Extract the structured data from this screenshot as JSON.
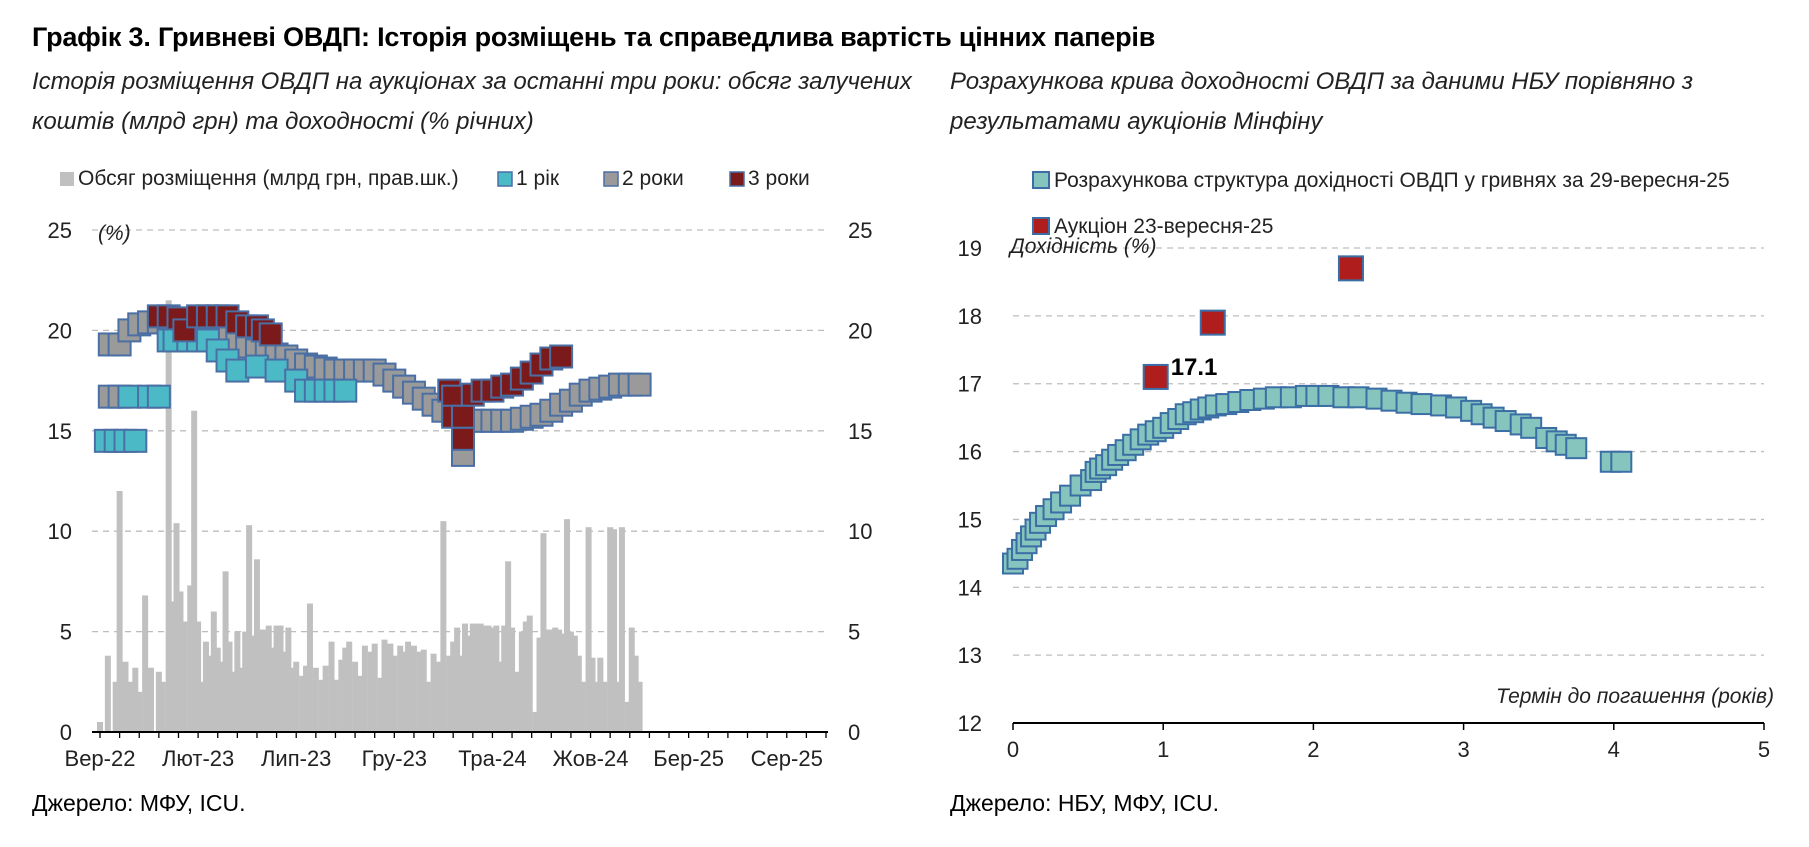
{
  "title": "Графік 3. Гривневі ОВДП: Історія розміщень та справедлива вартість цінних паперів",
  "charts": [
    {
      "subtitle_lines": [
        "Історія розміщення ОВДП на аукціонах за останні три роки: обсяг залучених",
        "коштів (млрд грн) та доходності (% річних)"
      ],
      "source": "Джерело: МФУ, ICU."
    },
    {
      "subtitle_lines": [
        "Розрахункова крива доходності ОВДП за даними НБУ порівняно з",
        "результатами аукціонів Мінфіну"
      ],
      "source": "Джерело: НБУ, МФУ, ICU."
    }
  ],
  "chart_data": [
    {
      "type": "bar+scatter",
      "legend": [
        "Обсяг розміщення (млрд грн, прав.шк.)",
        "1 рік",
        "2 роки",
        "3 роки"
      ],
      "legend_placement": "top",
      "ylabel": "(%)",
      "ylim": [
        0,
        25
      ],
      "yticks": [
        0,
        5,
        10,
        15,
        20,
        25
      ],
      "y2lim": [
        0,
        25
      ],
      "y2ticks": [
        0,
        5,
        10,
        15,
        20,
        25
      ],
      "xticks": [
        "Вер-22",
        "Лют-23",
        "Лип-23",
        "Гру-23",
        "Тра-24",
        "Жов-24",
        "Бер-25",
        "Сер-25"
      ],
      "x_month_range": [
        "2022-09",
        "2025-10"
      ],
      "grid": true,
      "colors": {
        "volume": "#c0c0c0",
        "yr1": "#4bbac6",
        "yr2": "#9a9a9a",
        "yr3": "#7b1a1a",
        "edge": "#4a6fa5"
      },
      "volume": [
        [
          0,
          0.5
        ],
        [
          0.4,
          3.8
        ],
        [
          0.8,
          2.5
        ],
        [
          1.0,
          12.0
        ],
        [
          1.3,
          3.5
        ],
        [
          1.6,
          2.5
        ],
        [
          1.8,
          3.2
        ],
        [
          2.0,
          2.0
        ],
        [
          2.3,
          6.8
        ],
        [
          2.6,
          3.2
        ],
        [
          3.0,
          3.0
        ],
        [
          3.2,
          2.5
        ],
        [
          3.5,
          21.5
        ],
        [
          3.7,
          6.5
        ],
        [
          3.9,
          10.4
        ],
        [
          4.1,
          7.0
        ],
        [
          4.3,
          5.5
        ],
        [
          4.6,
          7.3
        ],
        [
          4.8,
          16.0
        ],
        [
          5.0,
          5.5
        ],
        [
          5.2,
          2.5
        ],
        [
          5.4,
          4.5
        ],
        [
          5.6,
          3.8
        ],
        [
          5.8,
          6.0
        ],
        [
          6.0,
          4.2
        ],
        [
          6.2,
          3.5
        ],
        [
          6.4,
          8.0
        ],
        [
          6.6,
          4.5
        ],
        [
          6.8,
          3.0
        ],
        [
          7.0,
          5.0
        ],
        [
          7.2,
          3.2
        ],
        [
          7.4,
          5.0
        ],
        [
          7.6,
          10.3
        ],
        [
          7.8,
          4.8
        ],
        [
          8.0,
          8.6
        ],
        [
          8.2,
          5.1
        ],
        [
          8.4,
          5.1
        ],
        [
          8.6,
          5.3
        ],
        [
          8.8,
          4.2
        ],
        [
          9.0,
          5.3
        ],
        [
          9.2,
          5.3
        ],
        [
          9.4,
          4.0
        ],
        [
          9.6,
          5.2
        ],
        [
          9.8,
          3.2
        ],
        [
          10.0,
          3.5
        ],
        [
          10.3,
          2.8
        ],
        [
          10.5,
          3.3
        ],
        [
          10.7,
          6.4
        ],
        [
          11.0,
          3.2
        ],
        [
          11.3,
          2.6
        ],
        [
          11.5,
          3.3
        ],
        [
          11.8,
          4.5
        ],
        [
          12.0,
          2.6
        ],
        [
          12.3,
          3.6
        ],
        [
          12.5,
          4.2
        ],
        [
          12.7,
          4.5
        ],
        [
          13.0,
          3.5
        ],
        [
          13.2,
          2.8
        ],
        [
          13.5,
          4.3
        ],
        [
          13.8,
          4.0
        ],
        [
          14.0,
          4.4
        ],
        [
          14.3,
          2.7
        ],
        [
          14.5,
          4.6
        ],
        [
          14.8,
          4.4
        ],
        [
          15.0,
          3.8
        ],
        [
          15.3,
          4.3
        ],
        [
          15.5,
          4.0
        ],
        [
          15.7,
          4.5
        ],
        [
          16.0,
          4.3
        ],
        [
          16.3,
          4.0
        ],
        [
          16.5,
          4.1
        ],
        [
          16.7,
          2.5
        ],
        [
          17.0,
          3.9
        ],
        [
          17.3,
          3.5
        ],
        [
          17.5,
          10.5
        ],
        [
          17.8,
          3.8
        ],
        [
          18.0,
          4.5
        ],
        [
          18.2,
          5.2
        ],
        [
          18.4,
          3.8
        ],
        [
          18.6,
          5.4
        ],
        [
          18.8,
          4.8
        ],
        [
          19.0,
          5.4
        ],
        [
          19.2,
          5.4
        ],
        [
          19.4,
          5.4
        ],
        [
          19.6,
          5.3
        ],
        [
          19.8,
          5.3
        ],
        [
          20.0,
          5.2
        ],
        [
          20.2,
          5.3
        ],
        [
          20.4,
          3.5
        ],
        [
          20.6,
          5.3
        ],
        [
          20.8,
          8.5
        ],
        [
          21.0,
          5.2
        ],
        [
          21.2,
          3.0
        ],
        [
          21.5,
          5.0
        ],
        [
          21.7,
          5.5
        ],
        [
          21.9,
          5.8
        ],
        [
          22.2,
          1.0
        ],
        [
          22.4,
          4.7
        ],
        [
          22.6,
          9.9
        ],
        [
          22.8,
          5.1
        ],
        [
          23.0,
          5.1
        ],
        [
          23.2,
          5.2
        ],
        [
          23.4,
          5.1
        ],
        [
          23.6,
          4.9
        ],
        [
          23.8,
          10.6
        ],
        [
          24.0,
          5.0
        ],
        [
          24.2,
          4.8
        ],
        [
          24.4,
          3.8
        ],
        [
          24.6,
          2.5
        ],
        [
          24.9,
          10.2
        ],
        [
          25.1,
          3.7
        ],
        [
          25.3,
          2.5
        ],
        [
          25.5,
          3.7
        ],
        [
          25.7,
          2.5
        ],
        [
          26.0,
          10.2
        ],
        [
          26.2,
          10.1
        ],
        [
          26.4,
          2.5
        ],
        [
          26.6,
          10.2
        ],
        [
          26.9,
          1.5
        ],
        [
          27.1,
          5.2
        ],
        [
          27.3,
          3.8
        ],
        [
          27.5,
          2.5
        ]
      ],
      "yr1": [
        [
          0.3,
          14.5
        ],
        [
          0.8,
          14.5
        ],
        [
          1.3,
          14.5
        ],
        [
          1.8,
          14.5
        ],
        [
          1.5,
          16.7
        ],
        [
          2.5,
          16.7
        ],
        [
          3.0,
          16.7
        ],
        [
          3.5,
          19.5
        ],
        [
          3.8,
          19.5
        ],
        [
          4.5,
          19.5
        ],
        [
          5.0,
          19.5
        ],
        [
          5.5,
          19.5
        ],
        [
          6.0,
          19.0
        ],
        [
          6.5,
          18.5
        ],
        [
          7.0,
          18.0
        ],
        [
          8.0,
          18.2
        ],
        [
          9.0,
          18.0
        ],
        [
          10.0,
          17.5
        ],
        [
          10.5,
          17.0
        ],
        [
          11.0,
          17.0
        ],
        [
          11.5,
          17.0
        ],
        [
          12.0,
          17.0
        ],
        [
          12.5,
          17.0
        ]
      ],
      "yr2": [
        [
          0.5,
          16.7
        ],
        [
          1.0,
          16.7
        ],
        [
          0.5,
          19.3
        ],
        [
          1.0,
          19.3
        ],
        [
          1.5,
          20.0
        ],
        [
          2.0,
          20.3
        ],
        [
          2.5,
          20.4
        ],
        [
          3.0,
          20.4
        ],
        [
          3.5,
          20.4
        ],
        [
          4.0,
          20.3
        ],
        [
          4.5,
          20.2
        ],
        [
          5.0,
          20.2
        ],
        [
          5.5,
          20.0
        ],
        [
          6.0,
          19.8
        ],
        [
          6.5,
          19.6
        ],
        [
          7.0,
          19.4
        ],
        [
          7.5,
          19.2
        ],
        [
          8.0,
          19.0
        ],
        [
          8.5,
          18.9
        ],
        [
          9.0,
          18.8
        ],
        [
          9.5,
          18.7
        ],
        [
          10.0,
          18.5
        ],
        [
          10.5,
          18.3
        ],
        [
          11.0,
          18.2
        ],
        [
          11.5,
          18.1
        ],
        [
          12.0,
          18.0
        ],
        [
          12.5,
          18.0
        ],
        [
          13.0,
          18.0
        ],
        [
          13.5,
          18.0
        ],
        [
          14.0,
          18.0
        ],
        [
          14.5,
          17.8
        ],
        [
          15.0,
          17.5
        ],
        [
          15.5,
          17.2
        ],
        [
          16.0,
          16.9
        ],
        [
          16.5,
          16.6
        ],
        [
          17.0,
          16.3
        ],
        [
          17.5,
          16.0
        ],
        [
          18.0,
          15.8
        ],
        [
          18.5,
          15.6
        ],
        [
          19.0,
          15.5
        ],
        [
          19.5,
          15.5
        ],
        [
          20.0,
          15.5
        ],
        [
          20.5,
          15.5
        ],
        [
          21.0,
          15.5
        ],
        [
          21.5,
          15.6
        ],
        [
          22.0,
          15.7
        ],
        [
          22.5,
          15.8
        ],
        [
          23.0,
          16.0
        ],
        [
          23.5,
          16.3
        ],
        [
          24.0,
          16.5
        ],
        [
          24.5,
          16.8
        ],
        [
          25.0,
          17.0
        ],
        [
          25.5,
          17.1
        ],
        [
          26.0,
          17.2
        ],
        [
          26.5,
          17.3
        ],
        [
          27.0,
          17.3
        ],
        [
          27.5,
          17.3
        ],
        [
          18.5,
          13.8
        ],
        [
          18.5,
          14.8
        ]
      ],
      "yr3": [
        [
          3.0,
          20.7
        ],
        [
          3.5,
          20.7
        ],
        [
          4.0,
          20.6
        ],
        [
          4.3,
          20.0
        ],
        [
          5.0,
          20.7
        ],
        [
          5.5,
          20.7
        ],
        [
          6.0,
          20.7
        ],
        [
          6.5,
          20.7
        ],
        [
          7.0,
          20.4
        ],
        [
          7.5,
          20.2
        ],
        [
          8.0,
          20.2
        ],
        [
          8.3,
          20.0
        ],
        [
          8.7,
          19.8
        ],
        [
          17.8,
          17.0
        ],
        [
          18.0,
          16.7
        ],
        [
          18.0,
          15.7
        ],
        [
          18.5,
          15.7
        ],
        [
          18.5,
          14.6
        ],
        [
          19.0,
          16.8
        ],
        [
          19.5,
          17.0
        ],
        [
          20.0,
          17.0
        ],
        [
          20.5,
          17.2
        ],
        [
          21.0,
          17.3
        ],
        [
          21.5,
          17.6
        ],
        [
          22.0,
          17.9
        ],
        [
          22.5,
          18.3
        ],
        [
          23.0,
          18.6
        ],
        [
          23.5,
          18.7
        ]
      ]
    },
    {
      "type": "scatter",
      "legend": [
        "Розрахункова структура дохідності ОВДП у гривнях за 29-вересня-25",
        "Аукціон 23-вересня-25"
      ],
      "legend_placement": "top",
      "ylabel": "Дохідність (%)",
      "xlabel": "Термін до погашення (років)",
      "xlim": [
        0,
        5
      ],
      "xticks": [
        0,
        1,
        2,
        3,
        4,
        5
      ],
      "ylim": [
        12,
        19
      ],
      "yticks": [
        12,
        13,
        14,
        15,
        16,
        17,
        18,
        19
      ],
      "grid": true,
      "colors": {
        "curve": "#86c5bd",
        "auction": "#b01d1d",
        "edge": "#3b6ea5"
      },
      "annotation": "17.1",
      "series": [
        {
          "name": "Розрахункова структура дохідності ОВДП у гривнях за 29-вересня-25",
          "points": [
            [
              0.0,
              14.35
            ],
            [
              0.03,
              14.42
            ],
            [
              0.06,
              14.55
            ],
            [
              0.09,
              14.65
            ],
            [
              0.12,
              14.75
            ],
            [
              0.15,
              14.85
            ],
            [
              0.18,
              14.95
            ],
            [
              0.22,
              15.05
            ],
            [
              0.27,
              15.15
            ],
            [
              0.32,
              15.25
            ],
            [
              0.38,
              15.35
            ],
            [
              0.45,
              15.5
            ],
            [
              0.52,
              15.58
            ],
            [
              0.55,
              15.7
            ],
            [
              0.58,
              15.75
            ],
            [
              0.62,
              15.8
            ],
            [
              0.66,
              15.88
            ],
            [
              0.7,
              15.95
            ],
            [
              0.75,
              16.02
            ],
            [
              0.8,
              16.1
            ],
            [
              0.85,
              16.18
            ],
            [
              0.9,
              16.25
            ],
            [
              0.95,
              16.3
            ],
            [
              1.0,
              16.35
            ],
            [
              1.05,
              16.42
            ],
            [
              1.1,
              16.48
            ],
            [
              1.15,
              16.55
            ],
            [
              1.2,
              16.58
            ],
            [
              1.25,
              16.62
            ],
            [
              1.3,
              16.65
            ],
            [
              1.35,
              16.68
            ],
            [
              1.42,
              16.7
            ],
            [
              1.5,
              16.73
            ],
            [
              1.58,
              16.76
            ],
            [
              1.67,
              16.78
            ],
            [
              1.75,
              16.8
            ],
            [
              1.85,
              16.8
            ],
            [
              1.95,
              16.82
            ],
            [
              2.02,
              16.82
            ],
            [
              2.1,
              16.82
            ],
            [
              2.2,
              16.8
            ],
            [
              2.3,
              16.8
            ],
            [
              2.42,
              16.78
            ],
            [
              2.52,
              16.75
            ],
            [
              2.62,
              16.72
            ],
            [
              2.72,
              16.7
            ],
            [
              2.85,
              16.68
            ],
            [
              2.95,
              16.65
            ],
            [
              3.05,
              16.6
            ],
            [
              3.12,
              16.55
            ],
            [
              3.2,
              16.5
            ],
            [
              3.28,
              16.45
            ],
            [
              3.38,
              16.4
            ],
            [
              3.45,
              16.35
            ],
            [
              3.55,
              16.2
            ],
            [
              3.62,
              16.15
            ],
            [
              3.68,
              16.1
            ],
            [
              3.75,
              16.05
            ],
            [
              3.98,
              15.85
            ],
            [
              4.05,
              15.85
            ]
          ]
        },
        {
          "name": "Аукціон 23-вересня-25",
          "points": [
            [
              0.95,
              17.1
            ],
            [
              1.33,
              17.9
            ],
            [
              2.25,
              18.7
            ]
          ]
        }
      ]
    }
  ]
}
